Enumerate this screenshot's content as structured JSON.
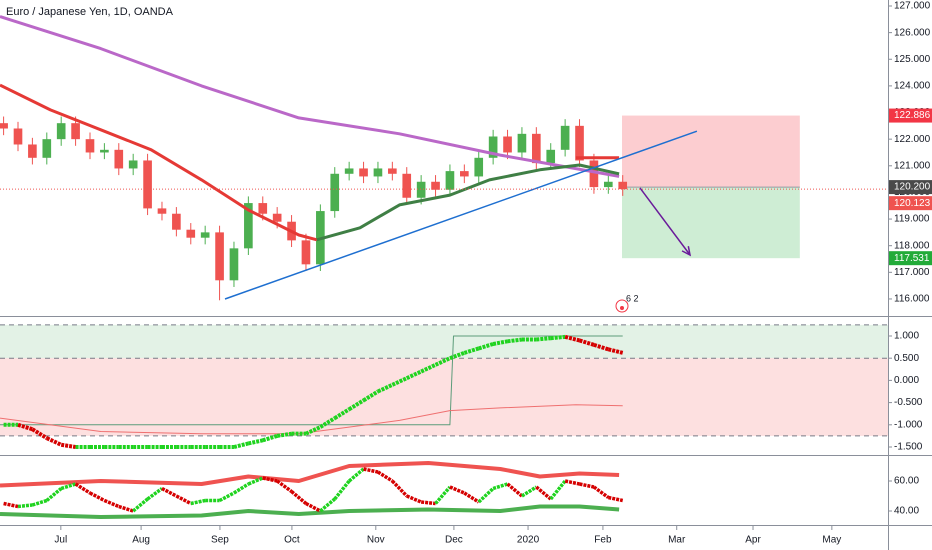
{
  "chart_data": [
    {
      "type": "candlestick",
      "title": "Euro / Japanese Yen, 1D, OANDA",
      "badge": "6 2",
      "xlim": [
        0,
        246.7
      ],
      "ylim": [
        115.36,
        127.225
      ],
      "yticks": [
        {
          "value": 116,
          "label": "116.000"
        },
        {
          "value": 117,
          "label": "117.000"
        },
        {
          "value": 118,
          "label": "118.000"
        },
        {
          "value": 119,
          "label": "119.000"
        },
        {
          "value": 120,
          "label": "120.000"
        },
        {
          "value": 121,
          "label": "121.000"
        },
        {
          "value": 122,
          "label": "122.000"
        },
        {
          "value": 123,
          "label": "123.000"
        },
        {
          "value": 124,
          "label": "124.000"
        },
        {
          "value": 125,
          "label": "125.000"
        },
        {
          "value": 126,
          "label": "126.000"
        },
        {
          "value": 127,
          "label": "127.000"
        }
      ],
      "up_color": "#4caf50",
      "down_color": "#ef5350",
      "x": [
        1,
        5,
        9,
        13,
        17,
        21,
        25,
        29,
        33,
        37,
        41,
        45,
        49,
        53,
        57,
        61,
        65,
        69,
        73,
        77,
        81,
        85,
        89,
        93,
        97,
        101,
        105,
        109,
        113,
        117,
        121,
        125,
        129,
        133,
        137,
        141,
        145,
        149,
        153,
        157,
        161,
        165,
        169,
        173
      ],
      "open": [
        122.6,
        122.4,
        121.8,
        121.3,
        122.0,
        122.6,
        122.0,
        121.5,
        121.6,
        120.9,
        121.2,
        119.4,
        119.2,
        118.6,
        118.3,
        118.5,
        116.7,
        117.9,
        119.6,
        119.2,
        118.9,
        118.2,
        117.3,
        119.3,
        120.7,
        120.9,
        120.6,
        120.9,
        120.7,
        119.8,
        120.4,
        120.1,
        120.8,
        120.6,
        121.3,
        122.1,
        121.5,
        122.2,
        121.1,
        121.6,
        122.5,
        121.2,
        120.2,
        120.4
      ],
      "high": [
        122.85,
        122.65,
        122.05,
        122.25,
        122.85,
        122.85,
        122.25,
        121.85,
        121.85,
        121.45,
        121.45,
        119.65,
        119.45,
        118.85,
        118.75,
        118.75,
        118.15,
        119.85,
        119.85,
        119.45,
        119.15,
        118.45,
        119.55,
        120.95,
        121.15,
        121.15,
        121.15,
        121.15,
        120.95,
        120.65,
        120.65,
        121.05,
        121.05,
        121.55,
        122.35,
        122.35,
        122.45,
        122.45,
        121.85,
        122.75,
        122.75,
        121.45,
        120.65,
        120.65
      ],
      "low": [
        122.15,
        121.55,
        121.05,
        121.05,
        121.75,
        121.75,
        121.25,
        121.25,
        120.65,
        120.65,
        119.15,
        118.95,
        118.35,
        118.05,
        118.05,
        115.95,
        116.45,
        117.65,
        118.95,
        118.65,
        117.95,
        117.05,
        117.05,
        119.05,
        120.45,
        120.35,
        120.35,
        120.45,
        119.55,
        119.55,
        119.85,
        119.85,
        120.35,
        120.35,
        121.05,
        121.25,
        121.25,
        120.85,
        120.85,
        121.35,
        120.95,
        119.95,
        119.95,
        119.87
      ],
      "close": [
        122.4,
        121.8,
        121.3,
        122.0,
        122.6,
        122.0,
        121.5,
        121.6,
        120.9,
        121.2,
        119.4,
        119.2,
        118.6,
        118.3,
        118.5,
        116.7,
        117.9,
        119.6,
        119.2,
        118.9,
        118.2,
        117.3,
        119.3,
        120.7,
        120.9,
        120.6,
        120.9,
        120.7,
        119.8,
        120.4,
        120.1,
        120.8,
        120.6,
        121.3,
        122.1,
        121.5,
        122.2,
        121.1,
        121.6,
        122.5,
        121.2,
        120.2,
        120.4,
        120.123
      ],
      "lines": [
        {
          "color": "#ba68c8",
          "x": [
            0,
            28,
            56,
            83,
            111,
            139,
            172
          ],
          "values": [
            126.6,
            125.4,
            124.0,
            122.8,
            122.2,
            121.4,
            120.6
          ]
        },
        {
          "color": "#e53935",
          "x": [
            0,
            14,
            28,
            42,
            56,
            69,
            83,
            88
          ],
          "values": [
            124.03,
            123.1,
            122.35,
            121.6,
            120.47,
            119.34,
            118.4,
            118.22
          ]
        },
        {
          "color": "#e53935",
          "x": [
            160,
            172
          ],
          "values": [
            121.3,
            121.3
          ]
        },
        {
          "color": "#3f7f45",
          "x": [
            88,
            100,
            111,
            125,
            136,
            150,
            161,
            172
          ],
          "values": [
            118.22,
            118.67,
            119.53,
            119.9,
            120.47,
            120.85,
            121.03,
            120.7
          ]
        }
      ],
      "trendline": {
        "color": "#1e6fd0",
        "x": [
          62.5,
          193.6
        ],
        "values": [
          116.0,
          122.3
        ]
      },
      "arrow": {
        "color": "#6a1b9a",
        "x": [
          177.8,
          191.7
        ],
        "values": [
          120.17,
          117.65
        ]
      },
      "position": {
        "x": [
          172.8,
          222.2
        ],
        "entry": {
          "value": 120.2,
          "label": "120.200"
        },
        "stop": {
          "value": 122.886,
          "label": "122.886"
        },
        "target": {
          "value": 117.531,
          "label": "117.531"
        },
        "stop_color": "#f23645",
        "target_color": "#22ab39",
        "entry_color": "#4a4a4a"
      }
    },
    {
      "type": "oscillator",
      "xlim": [
        0,
        246.7
      ],
      "ylim": [
        -1.68,
        1.405
      ],
      "yticks": [
        {
          "value": 1,
          "label": "1.000"
        },
        {
          "value": 0.5,
          "label": "0.500"
        },
        {
          "value": 0,
          "label": "0.000"
        },
        {
          "value": -0.5,
          "label": "-0.500"
        },
        {
          "value": -1,
          "label": "-1.000"
        },
        {
          "value": -1.5,
          "label": "-1.500"
        }
      ],
      "levels": [
        1.25,
        0.5,
        -1.25
      ],
      "upper_zone_color": "#e3f2e6",
      "lower_zone_color": "#fde0e0",
      "up_color": "#1fd31f",
      "down_color": "#d50000",
      "x": [
        1,
        5,
        9,
        13,
        17,
        21,
        25,
        29,
        33,
        37,
        41,
        45,
        49,
        53,
        57,
        61,
        65,
        69,
        73,
        77,
        81,
        85,
        89,
        93,
        97,
        101,
        105,
        109,
        113,
        117,
        121,
        125,
        129,
        133,
        137,
        141,
        145,
        149,
        153,
        157,
        161,
        165,
        169,
        173
      ],
      "values": [
        -1.0,
        -1.0,
        -1.1,
        -1.3,
        -1.45,
        -1.5,
        -1.5,
        -1.5,
        -1.5,
        -1.5,
        -1.5,
        -1.5,
        -1.5,
        -1.5,
        -1.5,
        -1.5,
        -1.5,
        -1.42,
        -1.35,
        -1.25,
        -1.2,
        -1.2,
        -1.05,
        -0.85,
        -0.65,
        -0.45,
        -0.25,
        -0.1,
        0.05,
        0.2,
        0.35,
        0.5,
        0.62,
        0.72,
        0.82,
        0.88,
        0.92,
        0.92,
        0.95,
        0.98,
        0.9,
        0.8,
        0.7,
        0.62
      ],
      "series": [
        {
          "color": "#5c9c7a",
          "x": [
            0,
            125,
            126,
            173
          ],
          "values": [
            -1,
            -1,
            1,
            1
          ]
        },
        {
          "color": "#ef7070",
          "x": [
            0,
            28,
            56,
            83,
            111,
            125,
            139,
            160,
            173
          ],
          "values": [
            -0.85,
            -1.15,
            -1.2,
            -1.2,
            -0.9,
            -0.68,
            -0.62,
            -0.55,
            -0.57
          ]
        }
      ]
    },
    {
      "type": "band-oscillator",
      "xlim": [
        0,
        246.7
      ],
      "ylim": [
        30.67,
        76
      ],
      "yticks": [
        {
          "value": 60,
          "label": "60.00"
        },
        {
          "value": 40,
          "label": "40.00"
        }
      ],
      "up_color": "#1fd31f",
      "down_color": "#d50000",
      "x": [
        1,
        5,
        9,
        13,
        17,
        21,
        25,
        29,
        33,
        37,
        41,
        45,
        49,
        53,
        57,
        61,
        65,
        69,
        73,
        77,
        81,
        85,
        89,
        93,
        97,
        101,
        105,
        109,
        113,
        117,
        121,
        125,
        129,
        133,
        137,
        141,
        145,
        149,
        153,
        157,
        161,
        165,
        169,
        173
      ],
      "values": [
        45,
        43,
        44,
        47,
        55,
        58,
        52,
        47,
        43,
        40,
        48,
        55,
        50,
        45,
        47,
        47,
        52,
        58,
        62,
        60,
        53,
        45,
        40,
        48,
        60,
        68,
        66,
        60,
        50,
        46,
        45,
        56,
        52,
        46,
        55,
        58,
        50,
        56,
        48,
        60,
        58,
        56,
        49,
        47
      ],
      "series": [
        {
          "color": "#ef5350",
          "x": [
            0,
            28,
            56,
            69,
            83,
            97,
            119,
            139,
            150,
            161,
            172
          ],
          "values": [
            57,
            60,
            58,
            63,
            60,
            70,
            72,
            68,
            63,
            65,
            64
          ]
        },
        {
          "color": "#4caf50",
          "x": [
            0,
            28,
            56,
            69,
            83,
            97,
            119,
            139,
            150,
            161,
            172
          ],
          "values": [
            38,
            36,
            37,
            40,
            38,
            40,
            41,
            40,
            43,
            43,
            41
          ]
        }
      ],
      "xticks": [
        {
          "value": 16.9,
          "label": "Jul"
        },
        {
          "value": 39.2,
          "label": "Aug"
        },
        {
          "value": 61.1,
          "label": "Sep"
        },
        {
          "value": 81.1,
          "label": "Oct"
        },
        {
          "value": 104.4,
          "label": "Nov"
        },
        {
          "value": 126.1,
          "label": "Dec"
        },
        {
          "value": 146.7,
          "label": "2020"
        },
        {
          "value": 167.5,
          "label": "Feb"
        },
        {
          "value": 188,
          "label": "Mar"
        },
        {
          "value": 209.2,
          "label": "Apr"
        },
        {
          "value": 231.1,
          "label": "May"
        }
      ]
    }
  ]
}
